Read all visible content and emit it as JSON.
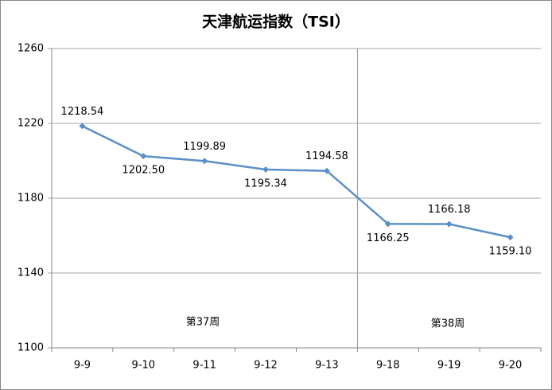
{
  "chart_data": {
    "type": "line",
    "title": "天津航运指数（TSI）",
    "categories": [
      "9-9",
      "9-10",
      "9-11",
      "9-12",
      "9-13",
      "9-18",
      "9-19",
      "9-20"
    ],
    "series": [
      {
        "name": "TSI",
        "color": "#5b8fc7",
        "values": [
          1218.54,
          1202.5,
          1199.89,
          1195.34,
          1194.58,
          1166.25,
          1166.18,
          1159.1
        ],
        "value_labels": [
          "1218.54",
          "1202.50",
          "1199.89",
          "1195.34",
          "1194.58",
          "1166.25",
          "1166.18",
          "1159.10"
        ]
      }
    ],
    "ylim": [
      1100,
      1260
    ],
    "yticks": [
      1100,
      1140,
      1180,
      1220,
      1260
    ],
    "grid": true,
    "annotations": [
      "第37周",
      "第38周"
    ]
  }
}
